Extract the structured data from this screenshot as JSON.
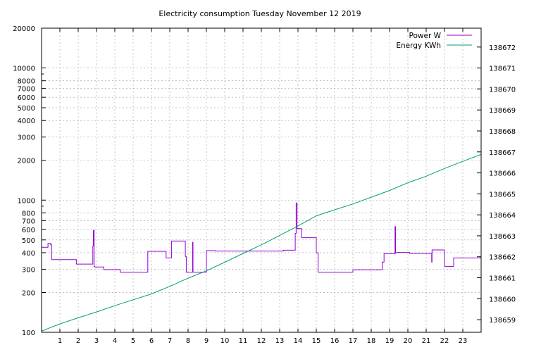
{
  "chart_data": {
    "type": "line",
    "title": "Electricity consumption Tuesday November 12 2019",
    "xlabel": "",
    "ylabel": "",
    "y2label": "",
    "grid": true,
    "legend_position": "top-right",
    "x_range": [
      0,
      24
    ],
    "x_ticks": [
      1,
      2,
      3,
      4,
      5,
      6,
      7,
      8,
      9,
      10,
      11,
      12,
      13,
      14,
      15,
      16,
      17,
      18,
      19,
      20,
      21,
      22,
      23
    ],
    "y_scale": "log",
    "y_range": [
      100,
      20000
    ],
    "y_ticks": [
      100,
      200,
      300,
      400,
      500,
      600,
      700,
      800,
      1000,
      2000,
      3000,
      4000,
      5000,
      6000,
      7000,
      8000,
      10000,
      20000
    ],
    "y2_range": [
      138658.4,
      138672.9
    ],
    "y2_ticks": [
      138659,
      138660,
      138661,
      138662,
      138663,
      138664,
      138665,
      138666,
      138667,
      138668,
      138669,
      138670,
      138671,
      138672
    ],
    "series": [
      {
        "name": "Power W",
        "axis": "y",
        "color": "#9400d3",
        "style": "step",
        "x": [
          0,
          0.35,
          0.5,
          0.55,
          1.9,
          2.8,
          2.83,
          2.87,
          2.9,
          3.4,
          4.3,
          5.8,
          6.8,
          7.1,
          7.85,
          7.9,
          7.95,
          8.25,
          8.27,
          8.3,
          9.0,
          9.5,
          13.2,
          13.85,
          13.9,
          13.95,
          14.0,
          14.2,
          15.0,
          15.1,
          17.0,
          18.6,
          18.7,
          19.3,
          19.33,
          19.4,
          20.1,
          21.3,
          21.32,
          21.35,
          22.0,
          22.5,
          24.0
        ],
        "values": [
          440,
          470,
          460,
          355,
          328,
          450,
          590,
          315,
          312,
          298,
          285,
          410,
          365,
          490,
          375,
          285,
          285,
          480,
          285,
          285,
          415,
          412,
          418,
          560,
          950,
          610,
          608,
          520,
          400,
          285,
          297,
          340,
          393,
          630,
          400,
          402,
          395,
          340,
          420,
          420,
          315,
          365,
          370
        ]
      },
      {
        "name": "Energy KWh",
        "axis": "y2",
        "color": "#009e73",
        "style": "line",
        "x": [
          0,
          0.5,
          1,
          2,
          3,
          4,
          5,
          6,
          7,
          8,
          9,
          10,
          11,
          12,
          13,
          14,
          15,
          16,
          17,
          18,
          19,
          20,
          21,
          22,
          23,
          24
        ],
        "values": [
          138658.45,
          138658.63,
          138658.8,
          138659.09,
          138659.37,
          138659.67,
          138659.95,
          138660.23,
          138660.59,
          138660.98,
          138661.33,
          138661.74,
          138662.16,
          138662.57,
          138663.02,
          138663.47,
          138663.95,
          138664.24,
          138664.52,
          138664.84,
          138665.16,
          138665.53,
          138665.84,
          138666.21,
          138666.55,
          138666.88
        ]
      }
    ]
  }
}
